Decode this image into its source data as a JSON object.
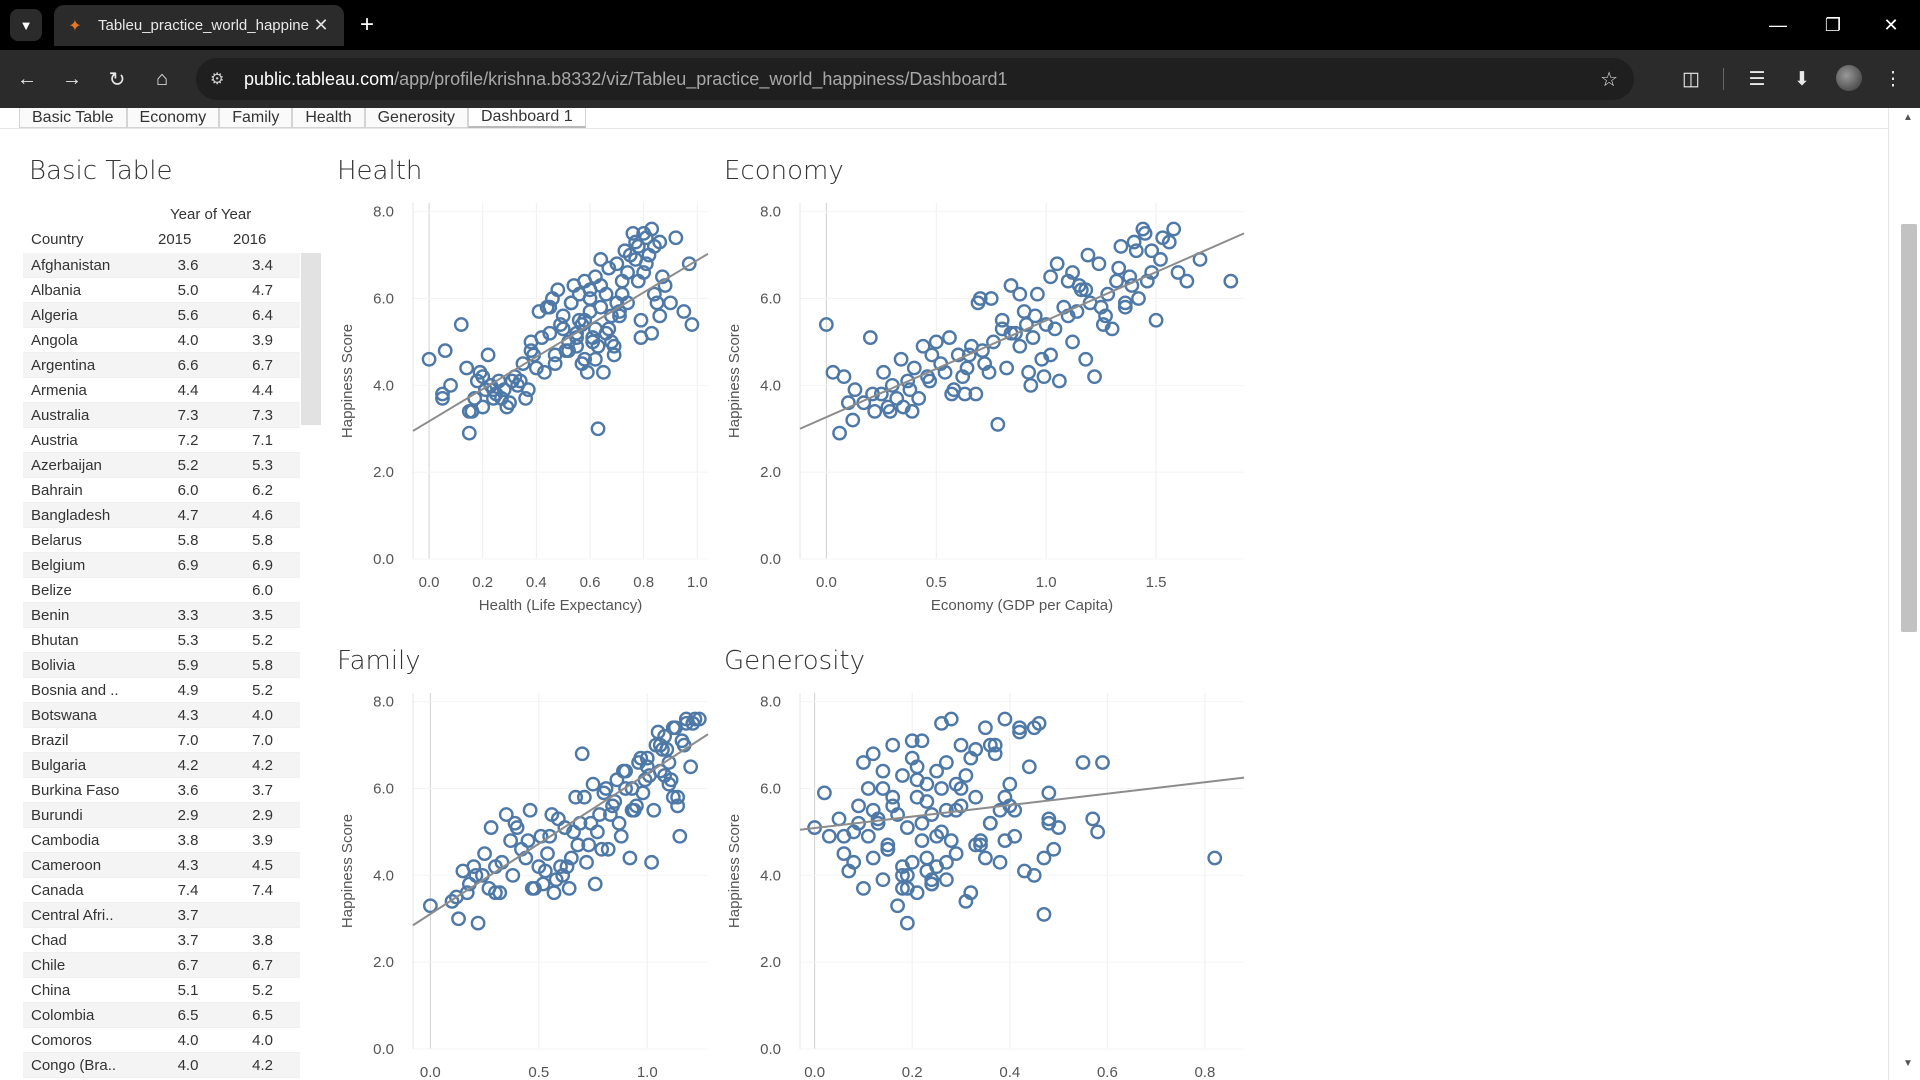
{
  "browser": {
    "tab_title": "Tableu_practice_world_happine",
    "url_host": "public.tableau.com",
    "url_path": "/app/profile/krishna.b8332/viz/Tableu_practice_world_happiness/Dashboard1"
  },
  "sheet_tabs": [
    {
      "label": "Basic Table"
    },
    {
      "label": "Economy"
    },
    {
      "label": "Family"
    },
    {
      "label": "Health"
    },
    {
      "label": "Generosity"
    },
    {
      "label": "Dashboard 1"
    }
  ],
  "basic_table": {
    "title": "Basic Table",
    "group_header": "Year of Year",
    "col_country": "Country",
    "col_y1": "2015",
    "col_y2": "2016",
    "rows": [
      {
        "country": "Afghanistan",
        "y2015": "3.6",
        "y2016": "3.4"
      },
      {
        "country": "Albania",
        "y2015": "5.0",
        "y2016": "4.7"
      },
      {
        "country": "Algeria",
        "y2015": "5.6",
        "y2016": "6.4"
      },
      {
        "country": "Angola",
        "y2015": "4.0",
        "y2016": "3.9"
      },
      {
        "country": "Argentina",
        "y2015": "6.6",
        "y2016": "6.7"
      },
      {
        "country": "Armenia",
        "y2015": "4.4",
        "y2016": "4.4"
      },
      {
        "country": "Australia",
        "y2015": "7.3",
        "y2016": "7.3"
      },
      {
        "country": "Austria",
        "y2015": "7.2",
        "y2016": "7.1"
      },
      {
        "country": "Azerbaijan",
        "y2015": "5.2",
        "y2016": "5.3"
      },
      {
        "country": "Bahrain",
        "y2015": "6.0",
        "y2016": "6.2"
      },
      {
        "country": "Bangladesh",
        "y2015": "4.7",
        "y2016": "4.6"
      },
      {
        "country": "Belarus",
        "y2015": "5.8",
        "y2016": "5.8"
      },
      {
        "country": "Belgium",
        "y2015": "6.9",
        "y2016": "6.9"
      },
      {
        "country": "Belize",
        "y2015": "",
        "y2016": "6.0"
      },
      {
        "country": "Benin",
        "y2015": "3.3",
        "y2016": "3.5"
      },
      {
        "country": "Bhutan",
        "y2015": "5.3",
        "y2016": "5.2"
      },
      {
        "country": "Bolivia",
        "y2015": "5.9",
        "y2016": "5.8"
      },
      {
        "country": "Bosnia and ..",
        "y2015": "4.9",
        "y2016": "5.2"
      },
      {
        "country": "Botswana",
        "y2015": "4.3",
        "y2016": "4.0"
      },
      {
        "country": "Brazil",
        "y2015": "7.0",
        "y2016": "7.0"
      },
      {
        "country": "Bulgaria",
        "y2015": "4.2",
        "y2016": "4.2"
      },
      {
        "country": "Burkina Faso",
        "y2015": "3.6",
        "y2016": "3.7"
      },
      {
        "country": "Burundi",
        "y2015": "2.9",
        "y2016": "2.9"
      },
      {
        "country": "Cambodia",
        "y2015": "3.8",
        "y2016": "3.9"
      },
      {
        "country": "Cameroon",
        "y2015": "4.3",
        "y2016": "4.5"
      },
      {
        "country": "Canada",
        "y2015": "7.4",
        "y2016": "7.4"
      },
      {
        "country": "Central Afri..",
        "y2015": "3.7",
        "y2016": ""
      },
      {
        "country": "Chad",
        "y2015": "3.7",
        "y2016": "3.8"
      },
      {
        "country": "Chile",
        "y2015": "6.7",
        "y2016": "6.7"
      },
      {
        "country": "China",
        "y2015": "5.1",
        "y2016": "5.2"
      },
      {
        "country": "Colombia",
        "y2015": "6.5",
        "y2016": "6.5"
      },
      {
        "country": "Comoros",
        "y2015": "4.0",
        "y2016": "4.0"
      },
      {
        "country": "Congo (Bra..",
        "y2015": "4.0",
        "y2016": "4.2"
      }
    ]
  },
  "chart_data": [
    {
      "type": "scatter",
      "title": "Health",
      "xlabel": "Health (Life Expectancy)",
      "ylabel": "Happiness Score",
      "xlim": [
        -0.06,
        1.04
      ],
      "ylim": [
        0,
        8.2
      ],
      "xticks": [
        "0.0",
        "0.2",
        "0.4",
        "0.6",
        "0.8",
        "1.0"
      ],
      "xtick_values": [
        0,
        0.2,
        0.4,
        0.6,
        0.8,
        1.0
      ],
      "yticks": [
        "0.0",
        "2.0",
        "4.0",
        "6.0",
        "8.0"
      ],
      "ytick_values": [
        0,
        2,
        4,
        6,
        8
      ],
      "trend": [
        [
          -0.06,
          2.95
        ],
        [
          1.04,
          7.03
        ]
      ],
      "x": [
        0.0,
        0.05,
        0.05,
        0.06,
        0.12,
        0.14,
        0.15,
        0.17,
        0.18,
        0.2,
        0.2,
        0.22,
        0.24,
        0.26,
        0.28,
        0.3,
        0.32,
        0.33,
        0.35,
        0.36,
        0.38,
        0.38,
        0.4,
        0.42,
        0.44,
        0.45,
        0.46,
        0.47,
        0.48,
        0.5,
        0.5,
        0.52,
        0.53,
        0.54,
        0.55,
        0.55,
        0.56,
        0.57,
        0.58,
        0.58,
        0.59,
        0.6,
        0.6,
        0.61,
        0.62,
        0.62,
        0.63,
        0.64,
        0.64,
        0.65,
        0.66,
        0.67,
        0.67,
        0.68,
        0.69,
        0.7,
        0.7,
        0.71,
        0.72,
        0.73,
        0.74,
        0.75,
        0.76,
        0.77,
        0.78,
        0.78,
        0.79,
        0.8,
        0.8,
        0.81,
        0.82,
        0.83,
        0.84,
        0.85,
        0.86,
        0.88,
        0.9,
        0.92,
        0.95,
        0.97,
        0.98,
        0.16,
        0.23,
        0.31,
        0.43,
        0.49,
        0.56,
        0.63,
        0.71,
        0.74,
        0.79,
        0.81,
        0.83,
        0.86,
        0.62,
        0.58,
        0.55,
        0.47,
        0.37,
        0.27,
        0.21,
        0.19,
        0.66,
        0.6,
        0.51,
        0.41,
        0.34,
        0.25,
        0.69,
        0.72,
        0.61,
        0.57,
        0.53,
        0.64,
        0.77,
        0.84,
        0.87,
        0.68,
        0.52,
        0.45,
        0.39,
        0.29,
        0.24,
        0.15,
        0.08
      ],
      "y": [
        4.6,
        3.8,
        3.7,
        4.8,
        5.4,
        4.4,
        2.9,
        3.7,
        4.1,
        4.2,
        3.5,
        4.7,
        3.7,
        4.1,
        3.9,
        3.6,
        4.2,
        4.0,
        4.5,
        3.7,
        4.8,
        5.0,
        4.4,
        5.1,
        5.8,
        5.2,
        6.0,
        4.7,
        6.2,
        5.3,
        5.6,
        5.0,
        5.9,
        6.3,
        5.2,
        4.9,
        6.1,
        4.5,
        5.5,
        6.4,
        4.3,
        5.7,
        6.2,
        5.0,
        6.5,
        4.6,
        4.9,
        6.9,
        5.8,
        4.3,
        6.1,
        5.3,
        6.7,
        5.0,
        4.7,
        6.8,
        5.9,
        5.6,
        6.1,
        7.1,
        5.9,
        7.0,
        7.5,
        7.3,
        6.4,
        7.2,
        5.5,
        7.5,
        6.6,
        7.4,
        7.0,
        5.2,
        6.1,
        5.9,
        7.3,
        6.3,
        5.9,
        7.4,
        5.7,
        6.8,
        5.4,
        3.4,
        4.0,
        4.1,
        4.3,
        5.4,
        5.5,
        3.0,
        5.7,
        6.6,
        5.1,
        6.8,
        7.6,
        5.6,
        5.3,
        4.6,
        5.1,
        4.5,
        3.9,
        3.7,
        3.9,
        4.3,
        5.2,
        6.0,
        4.8,
        5.7,
        4.1,
        3.8,
        4.9,
        6.4,
        5.1,
        5.4,
        5.9,
        6.3,
        6.9,
        7.2,
        6.5,
        5.6,
        4.8,
        5.8,
        4.7,
        3.5,
        3.9,
        3.4,
        4.0
      ]
    },
    {
      "type": "scatter",
      "title": "Economy",
      "xlabel": "Economy (GDP per Capita)",
      "ylabel": "Happiness Score",
      "xlim": [
        -0.12,
        1.9
      ],
      "ylim": [
        0,
        8.2
      ],
      "xticks": [
        "0.0",
        "0.5",
        "1.0",
        "1.5"
      ],
      "xtick_values": [
        0,
        0.5,
        1.0,
        1.5
      ],
      "yticks": [
        "0.0",
        "2.0",
        "4.0",
        "6.0",
        "8.0"
      ],
      "ytick_values": [
        0,
        2,
        4,
        6,
        8
      ],
      "trend": [
        [
          -0.12,
          3.0
        ],
        [
          1.9,
          7.5
        ]
      ],
      "x": [
        0.0,
        0.03,
        0.06,
        0.08,
        0.1,
        0.13,
        0.17,
        0.2,
        0.22,
        0.25,
        0.26,
        0.28,
        0.3,
        0.32,
        0.34,
        0.35,
        0.37,
        0.38,
        0.4,
        0.42,
        0.44,
        0.46,
        0.48,
        0.5,
        0.52,
        0.54,
        0.56,
        0.58,
        0.6,
        0.62,
        0.64,
        0.66,
        0.68,
        0.7,
        0.72,
        0.74,
        0.76,
        0.78,
        0.8,
        0.82,
        0.84,
        0.86,
        0.88,
        0.9,
        0.92,
        0.94,
        0.96,
        0.98,
        1.0,
        1.02,
        1.04,
        1.06,
        1.08,
        1.1,
        1.12,
        1.14,
        1.16,
        1.18,
        1.2,
        1.22,
        1.24,
        1.26,
        1.28,
        1.3,
        1.32,
        1.34,
        1.36,
        1.38,
        1.4,
        1.42,
        1.44,
        1.46,
        1.48,
        1.5,
        1.52,
        1.56,
        1.6,
        1.64,
        1.7,
        1.84,
        0.69,
        0.75,
        0.8,
        0.88,
        0.95,
        1.05,
        1.12,
        1.18,
        1.25,
        1.33,
        1.41,
        1.45,
        1.53,
        1.58,
        1.39,
        1.27,
        1.15,
        0.99,
        0.91,
        0.84,
        0.71,
        0.63,
        0.57,
        0.47,
        0.39,
        0.29,
        0.21,
        0.12,
        1.1,
        1.19,
        1.36,
        1.48,
        1.02,
        0.93,
        0.65
      ],
      "y": [
        5.4,
        4.3,
        2.9,
        4.2,
        3.6,
        3.9,
        3.6,
        5.1,
        3.4,
        3.8,
        4.3,
        3.5,
        4.0,
        3.7,
        4.6,
        3.5,
        4.1,
        3.9,
        4.4,
        3.7,
        4.9,
        4.2,
        4.7,
        5.0,
        4.5,
        4.3,
        5.1,
        3.9,
        4.7,
        4.2,
        4.4,
        4.9,
        3.8,
        6.0,
        4.5,
        4.3,
        5.0,
        3.1,
        5.3,
        4.4,
        6.3,
        5.2,
        4.9,
        5.7,
        4.3,
        5.1,
        6.1,
        4.6,
        5.4,
        6.5,
        5.3,
        4.1,
        5.8,
        6.4,
        5.0,
        5.7,
        6.2,
        4.6,
        5.9,
        4.2,
        6.8,
        5.4,
        6.1,
        5.3,
        6.4,
        7.2,
        5.8,
        6.5,
        7.3,
        6.0,
        7.6,
        6.4,
        7.1,
        5.5,
        6.9,
        7.3,
        6.6,
        6.4,
        6.9,
        6.4,
        5.9,
        6.0,
        5.5,
        6.1,
        5.6,
        6.8,
        6.6,
        6.2,
        5.8,
        6.7,
        7.1,
        7.5,
        7.4,
        7.6,
        6.3,
        5.6,
        6.3,
        4.2,
        5.4,
        5.2,
        4.8,
        3.8,
        3.8,
        4.1,
        3.4,
        3.4,
        3.8,
        3.2,
        5.6,
        7.0,
        5.9,
        6.6,
        4.7,
        4.0,
        4.7
      ]
    },
    {
      "type": "scatter",
      "title": "Family",
      "xlabel": "",
      "ylabel": "Happiness Score",
      "xlim": [
        -0.08,
        1.28
      ],
      "ylim": [
        0,
        8.2
      ],
      "xticks": [
        "0.0",
        "0.5",
        "1.0"
      ],
      "xtick_values": [
        0,
        0.5,
        1.0
      ],
      "yticks": [
        "0.0",
        "2.0",
        "4.0",
        "6.0",
        "8.0"
      ],
      "ytick_values": [
        0,
        2,
        4,
        6,
        8
      ],
      "trend": [
        [
          -0.08,
          2.85
        ],
        [
          1.28,
          7.25
        ]
      ],
      "x": [
        0.0,
        0.1,
        0.13,
        0.15,
        0.18,
        0.2,
        0.22,
        0.25,
        0.28,
        0.3,
        0.33,
        0.35,
        0.38,
        0.4,
        0.42,
        0.45,
        0.47,
        0.5,
        0.52,
        0.54,
        0.56,
        0.58,
        0.6,
        0.62,
        0.64,
        0.66,
        0.68,
        0.7,
        0.72,
        0.74,
        0.76,
        0.78,
        0.8,
        0.82,
        0.84,
        0.86,
        0.88,
        0.9,
        0.92,
        0.94,
        0.96,
        0.98,
        1.0,
        1.02,
        1.04,
        1.06,
        1.08,
        1.1,
        1.12,
        1.14,
        1.16,
        1.18,
        1.2,
        1.22,
        1.24,
        0.48,
        0.53,
        0.57,
        0.61,
        0.65,
        0.69,
        0.73,
        0.77,
        0.81,
        0.85,
        0.89,
        0.93,
        0.97,
        1.01,
        1.05,
        1.09,
        1.13,
        1.17,
        1.21,
        1.1,
        1.06,
        1.0,
        0.95,
        0.9,
        0.83,
        0.75,
        0.67,
        0.59,
        0.51,
        0.44,
        0.37,
        0.3,
        0.24,
        0.17,
        1.15,
        1.12,
        1.08,
        1.03,
        0.99,
        0.93,
        0.87,
        0.79,
        0.71,
        0.63,
        0.55,
        0.46,
        0.39,
        0.32,
        0.27,
        0.21,
        0.12,
        1.18,
        1.14,
        1.11,
        1.07
      ],
      "y": [
        3.3,
        3.4,
        3.0,
        4.1,
        3.8,
        4.2,
        2.9,
        4.5,
        5.1,
        3.6,
        4.3,
        5.4,
        4.0,
        5.1,
        4.6,
        4.8,
        3.7,
        4.2,
        3.8,
        4.5,
        5.4,
        3.9,
        4.2,
        5.1,
        3.7,
        5.0,
        4.7,
        6.8,
        4.3,
        5.2,
        3.8,
        5.4,
        5.9,
        4.6,
        5.6,
        6.2,
        4.9,
        6.0,
        4.4,
        5.5,
        6.6,
        5.9,
        6.7,
        4.3,
        7.0,
        6.4,
        7.2,
        6.6,
        7.4,
        5.8,
        7.1,
        7.5,
        6.5,
        7.6,
        7.6,
        3.7,
        4.1,
        3.6,
        4.0,
        4.4,
        5.2,
        4.7,
        5.0,
        6.0,
        5.7,
        6.4,
        5.5,
        6.7,
        6.3,
        7.3,
        6.9,
        7.4,
        7.0,
        7.5,
        6.1,
        7.0,
        6.5,
        5.6,
        6.4,
        5.4,
        6.1,
        5.8,
        5.3,
        4.9,
        4.4,
        4.8,
        4.2,
        4.0,
        3.6,
        4.9,
        5.8,
        6.3,
        5.5,
        6.2,
        6.0,
        5.2,
        4.6,
        5.8,
        4.2,
        4.9,
        5.5,
        5.2,
        3.6,
        3.7,
        4.0,
        3.5,
        7.6,
        5.6,
        6.2,
        6.9
      ]
    },
    {
      "type": "scatter",
      "title": "Generosity",
      "xlabel": "",
      "ylabel": "Happiness Score",
      "xlim": [
        -0.03,
        0.88
      ],
      "ylim": [
        0,
        8.2
      ],
      "xticks": [
        "0.0",
        "0.2",
        "0.4",
        "0.6",
        "0.8"
      ],
      "xtick_values": [
        0,
        0.2,
        0.4,
        0.6,
        0.8
      ],
      "yticks": [
        "0.0",
        "2.0",
        "4.0",
        "6.0",
        "8.0"
      ],
      "ytick_values": [
        0,
        2,
        4,
        6,
        8
      ],
      "trend": [
        [
          -0.03,
          5.05
        ],
        [
          0.88,
          6.25
        ]
      ],
      "x": [
        0.0,
        0.02,
        0.03,
        0.05,
        0.06,
        0.07,
        0.08,
        0.09,
        0.1,
        0.1,
        0.11,
        0.12,
        0.12,
        0.13,
        0.14,
        0.14,
        0.15,
        0.16,
        0.16,
        0.17,
        0.18,
        0.18,
        0.19,
        0.19,
        0.2,
        0.2,
        0.21,
        0.21,
        0.22,
        0.22,
        0.23,
        0.23,
        0.24,
        0.24,
        0.25,
        0.25,
        0.26,
        0.26,
        0.27,
        0.27,
        0.28,
        0.29,
        0.29,
        0.3,
        0.31,
        0.32,
        0.33,
        0.34,
        0.35,
        0.36,
        0.37,
        0.38,
        0.39,
        0.4,
        0.41,
        0.42,
        0.44,
        0.45,
        0.46,
        0.47,
        0.48,
        0.49,
        0.5,
        0.55,
        0.57,
        0.59,
        0.82,
        0.08,
        0.11,
        0.13,
        0.15,
        0.17,
        0.19,
        0.21,
        0.23,
        0.25,
        0.27,
        0.29,
        0.31,
        0.33,
        0.35,
        0.37,
        0.39,
        0.41,
        0.43,
        0.45,
        0.47,
        0.48,
        0.14,
        0.16,
        0.18,
        0.2,
        0.22,
        0.24,
        0.26,
        0.28,
        0.3,
        0.32,
        0.34,
        0.36,
        0.38,
        0.4,
        0.06,
        0.09,
        0.12,
        0.15,
        0.18,
        0.21,
        0.24,
        0.27,
        0.3,
        0.33,
        0.36,
        0.39,
        0.42,
        0.48,
        0.58,
        0.19,
        0.23
      ],
      "y": [
        5.1,
        5.9,
        4.9,
        5.3,
        4.5,
        4.1,
        4.3,
        5.6,
        3.7,
        6.6,
        4.9,
        4.4,
        6.8,
        5.3,
        3.9,
        6.0,
        4.6,
        7.0,
        5.6,
        3.3,
        6.3,
        4.0,
        5.1,
        3.7,
        6.7,
        4.3,
        5.8,
        3.6,
        7.1,
        4.8,
        6.1,
        4.4,
        5.4,
        3.8,
        6.4,
        4.2,
        7.5,
        5.0,
        6.6,
        3.9,
        7.6,
        5.5,
        4.5,
        7.0,
        6.3,
        3.6,
        6.9,
        4.7,
        7.4,
        5.2,
        7.0,
        4.3,
        7.6,
        5.6,
        4.9,
        7.3,
        6.5,
        4.0,
        7.5,
        3.1,
        5.9,
        4.6,
        5.1,
        6.6,
        5.3,
        6.6,
        4.4,
        5.0,
        6.0,
        5.2,
        4.6,
        5.4,
        4.0,
        6.2,
        5.7,
        4.9,
        5.5,
        6.1,
        3.4,
        5.8,
        4.4,
        6.8,
        4.8,
        5.5,
        4.1,
        7.4,
        4.4,
        5.3,
        6.4,
        5.8,
        4.2,
        7.1,
        5.2,
        3.8,
        6.0,
        4.8,
        5.6,
        6.7,
        4.8,
        7.0,
        5.5,
        6.1,
        4.9,
        5.2,
        5.5,
        4.7,
        3.7,
        6.5,
        3.9,
        4.3,
        6.0,
        4.7,
        5.2,
        5.8,
        7.4,
        5.2,
        5.0,
        2.9,
        4.1
      ]
    }
  ]
}
